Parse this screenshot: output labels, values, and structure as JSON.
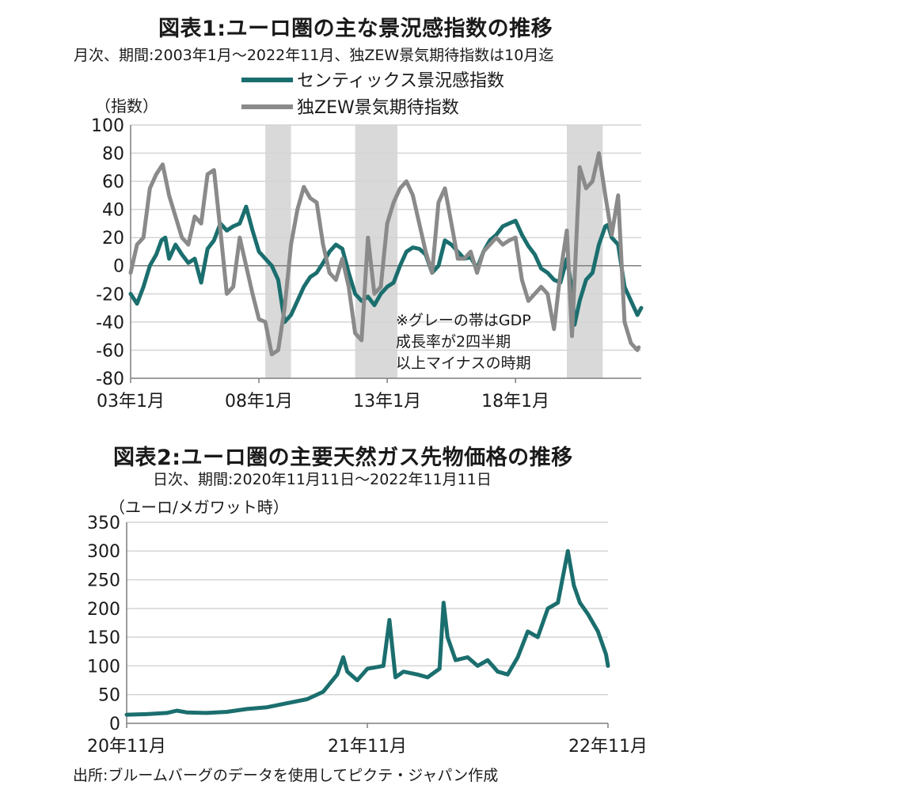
{
  "colors": {
    "teal": "#1b6e6e",
    "gray": "#8a8a8a",
    "band": "#d9d9d9",
    "grid": "#d4d4d4",
    "axis": "#7f7f7f"
  },
  "chart1_text": {
    "title": "図表1:ユーロ圏の主な景況感指数の推移",
    "subtitle": "月次、期間:2003年1月～2022年11月、独ZEW景気期待指数は10月迄",
    "unit": "（指数）",
    "note_lines": [
      "※グレーの帯はGDP",
      "成長率が2四半期",
      "以上マイナスの時期"
    ]
  },
  "chart2_text": {
    "title": "図表2:ユーロ圏の主要天然ガス先物価格の推移",
    "subtitle": "日次、期間:2020年11月11日～2022年11月11日",
    "unit": "（ユーロ/メガワット時）"
  },
  "source": "出所:ブルームバーグのデータを使用してピクテ・ジャパン作成",
  "chart_data": [
    {
      "type": "line",
      "ylim": [
        -80,
        100
      ],
      "yticks": [
        "100",
        "80",
        "60",
        "40",
        "20",
        "0",
        "-20",
        "-40",
        "-60",
        "-80"
      ],
      "xticks": [
        "03年1月",
        "08年1月",
        "13年1月",
        "18年1月"
      ],
      "xtick_positions": [
        2003.0,
        2008.0,
        2013.0,
        2018.0
      ],
      "xlim": [
        2003.0,
        2022.9
      ],
      "shaded_periods": [
        [
          2008.25,
          2009.25
        ],
        [
          2011.75,
          2013.4
        ],
        [
          2020.0,
          2021.4
        ]
      ],
      "grid": "horizontal",
      "legend_position": "top",
      "series": [
        {
          "name": "センティックス景況感指数",
          "color": "#1b6e6e",
          "points": [
            [
              2003.0,
              -20
            ],
            [
              2003.25,
              -27
            ],
            [
              2003.5,
              -15
            ],
            [
              2003.75,
              0
            ],
            [
              2004.0,
              8
            ],
            [
              2004.2,
              18
            ],
            [
              2004.35,
              20
            ],
            [
              2004.5,
              5
            ],
            [
              2004.75,
              15
            ],
            [
              2005.0,
              8
            ],
            [
              2005.25,
              2
            ],
            [
              2005.5,
              5
            ],
            [
              2005.75,
              -12
            ],
            [
              2006.0,
              12
            ],
            [
              2006.25,
              18
            ],
            [
              2006.5,
              30
            ],
            [
              2006.75,
              25
            ],
            [
              2007.0,
              28
            ],
            [
              2007.25,
              30
            ],
            [
              2007.5,
              42
            ],
            [
              2007.75,
              25
            ],
            [
              2008.0,
              10
            ],
            [
              2008.25,
              5
            ],
            [
              2008.5,
              0
            ],
            [
              2008.75,
              -10
            ],
            [
              2009.0,
              -40
            ],
            [
              2009.25,
              -35
            ],
            [
              2009.5,
              -25
            ],
            [
              2009.75,
              -15
            ],
            [
              2010.0,
              -8
            ],
            [
              2010.25,
              -5
            ],
            [
              2010.5,
              2
            ],
            [
              2010.75,
              10
            ],
            [
              2011.0,
              15
            ],
            [
              2011.25,
              12
            ],
            [
              2011.5,
              -5
            ],
            [
              2011.75,
              -20
            ],
            [
              2012.0,
              -25
            ],
            [
              2012.25,
              -22
            ],
            [
              2012.5,
              -28
            ],
            [
              2012.75,
              -20
            ],
            [
              2013.0,
              -15
            ],
            [
              2013.25,
              -12
            ],
            [
              2013.5,
              0
            ],
            [
              2013.75,
              10
            ],
            [
              2014.0,
              13
            ],
            [
              2014.25,
              12
            ],
            [
              2014.5,
              8
            ],
            [
              2014.75,
              -5
            ],
            [
              2015.0,
              0
            ],
            [
              2015.25,
              18
            ],
            [
              2015.5,
              15
            ],
            [
              2015.75,
              10
            ],
            [
              2016.0,
              5
            ],
            [
              2016.25,
              6
            ],
            [
              2016.5,
              -2
            ],
            [
              2016.75,
              10
            ],
            [
              2017.0,
              18
            ],
            [
              2017.25,
              22
            ],
            [
              2017.5,
              28
            ],
            [
              2017.75,
              30
            ],
            [
              2018.0,
              32
            ],
            [
              2018.25,
              22
            ],
            [
              2018.5,
              14
            ],
            [
              2018.75,
              8
            ],
            [
              2019.0,
              -2
            ],
            [
              2019.25,
              -5
            ],
            [
              2019.5,
              -10
            ],
            [
              2019.75,
              -12
            ],
            [
              2020.0,
              5
            ],
            [
              2020.2,
              -17
            ],
            [
              2020.3,
              -42
            ],
            [
              2020.5,
              -25
            ],
            [
              2020.75,
              -10
            ],
            [
              2021.0,
              -5
            ],
            [
              2021.25,
              15
            ],
            [
              2021.5,
              28
            ],
            [
              2021.6,
              29
            ],
            [
              2021.75,
              20
            ],
            [
              2022.0,
              15
            ],
            [
              2022.25,
              -15
            ],
            [
              2022.5,
              -25
            ],
            [
              2022.75,
              -35
            ],
            [
              2022.9,
              -30
            ]
          ]
        },
        {
          "name": "独ZEW景気期待指数",
          "color": "#8a8a8a",
          "points": [
            [
              2003.0,
              -5
            ],
            [
              2003.25,
              15
            ],
            [
              2003.5,
              20
            ],
            [
              2003.75,
              55
            ],
            [
              2004.0,
              65
            ],
            [
              2004.25,
              72
            ],
            [
              2004.5,
              50
            ],
            [
              2004.75,
              35
            ],
            [
              2005.0,
              20
            ],
            [
              2005.25,
              15
            ],
            [
              2005.5,
              35
            ],
            [
              2005.75,
              30
            ],
            [
              2006.0,
              65
            ],
            [
              2006.25,
              68
            ],
            [
              2006.5,
              25
            ],
            [
              2006.75,
              -20
            ],
            [
              2007.0,
              -15
            ],
            [
              2007.25,
              20
            ],
            [
              2007.5,
              0
            ],
            [
              2007.75,
              -20
            ],
            [
              2008.0,
              -38
            ],
            [
              2008.25,
              -40
            ],
            [
              2008.5,
              -63
            ],
            [
              2008.75,
              -60
            ],
            [
              2009.0,
              -30
            ],
            [
              2009.25,
              15
            ],
            [
              2009.5,
              40
            ],
            [
              2009.75,
              56
            ],
            [
              2010.0,
              48
            ],
            [
              2010.25,
              45
            ],
            [
              2010.5,
              15
            ],
            [
              2010.75,
              -5
            ],
            [
              2011.0,
              -10
            ],
            [
              2011.25,
              5
            ],
            [
              2011.5,
              -15
            ],
            [
              2011.75,
              -48
            ],
            [
              2012.0,
              -53
            ],
            [
              2012.25,
              20
            ],
            [
              2012.5,
              -20
            ],
            [
              2012.75,
              -15
            ],
            [
              2013.0,
              30
            ],
            [
              2013.25,
              45
            ],
            [
              2013.5,
              55
            ],
            [
              2013.75,
              60
            ],
            [
              2014.0,
              50
            ],
            [
              2014.25,
              30
            ],
            [
              2014.5,
              10
            ],
            [
              2014.75,
              -5
            ],
            [
              2015.0,
              45
            ],
            [
              2015.25,
              55
            ],
            [
              2015.5,
              30
            ],
            [
              2015.75,
              5
            ],
            [
              2016.0,
              5
            ],
            [
              2016.25,
              10
            ],
            [
              2016.5,
              -5
            ],
            [
              2016.75,
              10
            ],
            [
              2017.0,
              15
            ],
            [
              2017.25,
              20
            ],
            [
              2017.5,
              15
            ],
            [
              2017.75,
              18
            ],
            [
              2018.0,
              20
            ],
            [
              2018.25,
              -10
            ],
            [
              2018.5,
              -25
            ],
            [
              2018.75,
              -20
            ],
            [
              2019.0,
              -15
            ],
            [
              2019.25,
              -20
            ],
            [
              2019.5,
              -45
            ],
            [
              2019.75,
              -5
            ],
            [
              2020.0,
              25
            ],
            [
              2020.2,
              -50
            ],
            [
              2020.5,
              70
            ],
            [
              2020.75,
              55
            ],
            [
              2021.0,
              60
            ],
            [
              2021.25,
              80
            ],
            [
              2021.5,
              50
            ],
            [
              2021.75,
              22
            ],
            [
              2022.0,
              50
            ],
            [
              2022.25,
              -40
            ],
            [
              2022.5,
              -55
            ],
            [
              2022.75,
              -60
            ],
            [
              2022.8,
              -58
            ]
          ]
        }
      ]
    },
    {
      "type": "line",
      "ylim": [
        0,
        350
      ],
      "yticks": [
        "350",
        "300",
        "250",
        "200",
        "150",
        "100",
        "50",
        "0"
      ],
      "xticks": [
        "20年11月",
        "21年11月",
        "22年11月"
      ],
      "xtick_positions": [
        0,
        12,
        24
      ],
      "xlim": [
        0,
        24
      ],
      "grid": "horizontal",
      "series": [
        {
          "color": "#1b6e6e",
          "points": [
            [
              0,
              15
            ],
            [
              1,
              16
            ],
            [
              2,
              18
            ],
            [
              2.5,
              22
            ],
            [
              3,
              19
            ],
            [
              4,
              18
            ],
            [
              5,
              20
            ],
            [
              6,
              25
            ],
            [
              7,
              28
            ],
            [
              8,
              35
            ],
            [
              9,
              42
            ],
            [
              9.8,
              55
            ],
            [
              10.5,
              85
            ],
            [
              10.8,
              115
            ],
            [
              11,
              90
            ],
            [
              11.5,
              75
            ],
            [
              12,
              95
            ],
            [
              12.8,
              100
            ],
            [
              13.1,
              180
            ],
            [
              13.4,
              80
            ],
            [
              13.8,
              90
            ],
            [
              14.5,
              85
            ],
            [
              15,
              80
            ],
            [
              15.6,
              95
            ],
            [
              15.8,
              210
            ],
            [
              16,
              150
            ],
            [
              16.4,
              110
            ],
            [
              17,
              115
            ],
            [
              17.5,
              100
            ],
            [
              18,
              110
            ],
            [
              18.5,
              90
            ],
            [
              19,
              85
            ],
            [
              19.5,
              115
            ],
            [
              20,
              160
            ],
            [
              20.5,
              150
            ],
            [
              21,
              200
            ],
            [
              21.5,
              210
            ],
            [
              22,
              300
            ],
            [
              22.3,
              240
            ],
            [
              22.6,
              210
            ],
            [
              23,
              190
            ],
            [
              23.5,
              160
            ],
            [
              23.9,
              120
            ],
            [
              24,
              100
            ]
          ]
        }
      ]
    }
  ]
}
